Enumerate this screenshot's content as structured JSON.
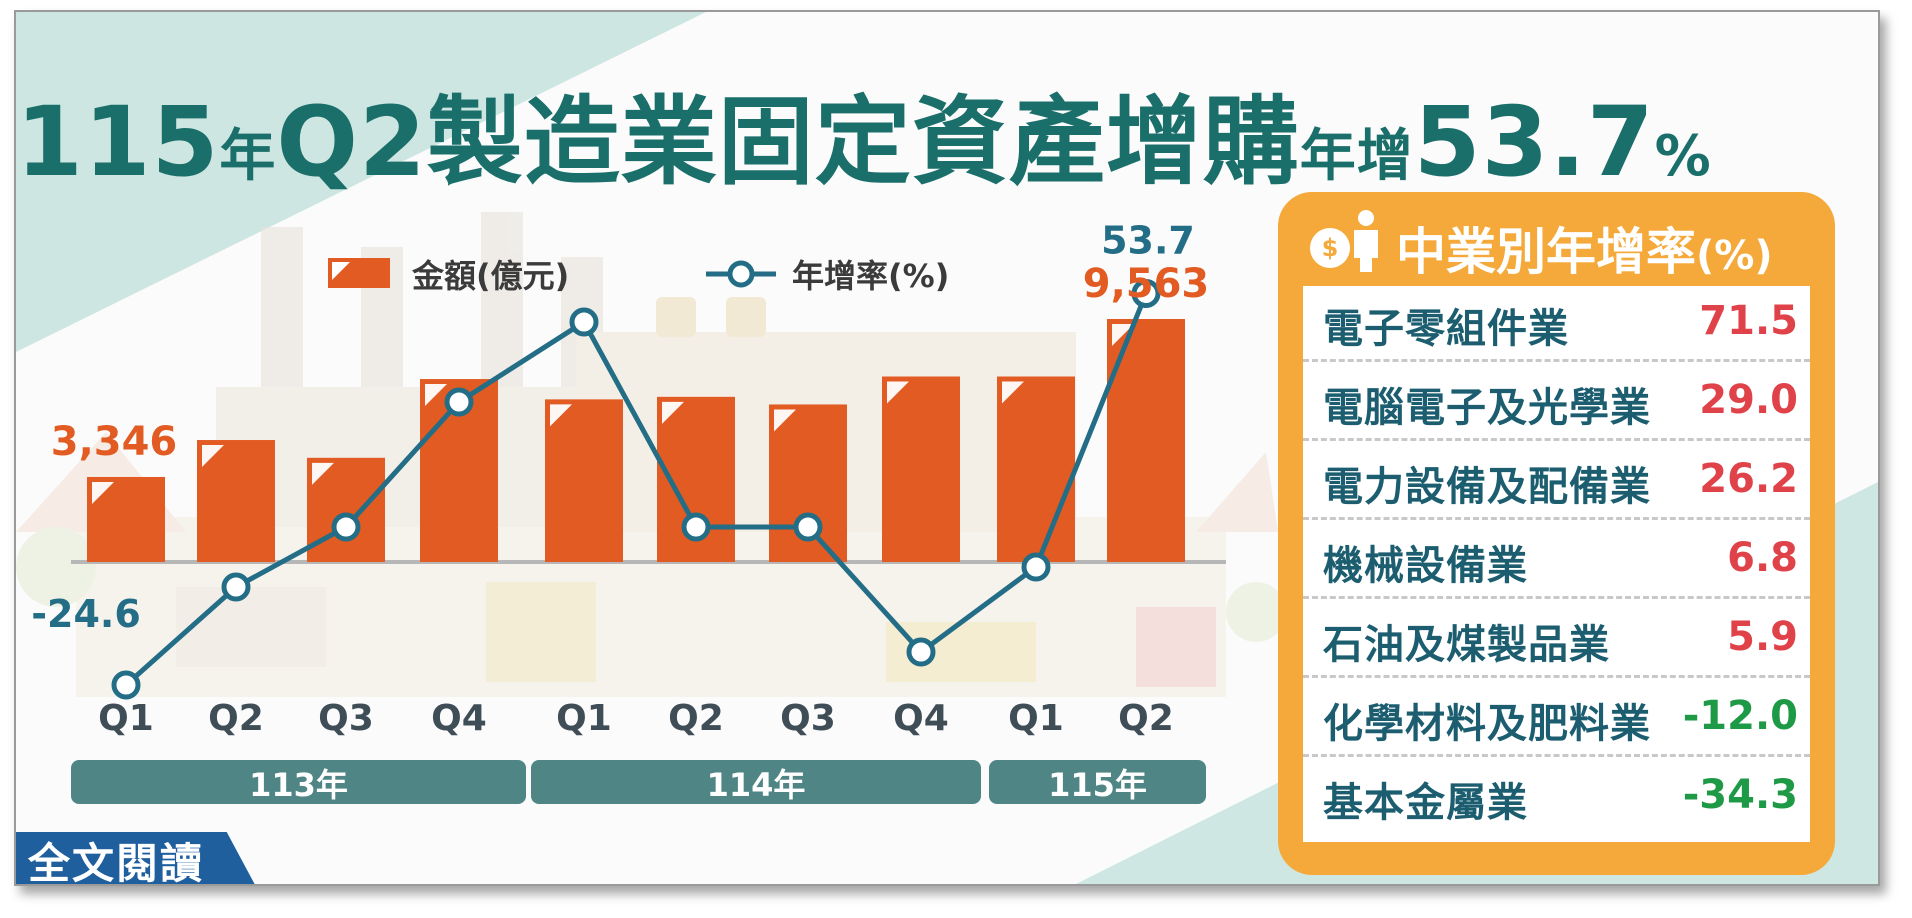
{
  "title": {
    "part1": "115",
    "part2": "年",
    "part3": "Q2製造業固定資產增購",
    "part4": "年增",
    "part5": "53.7",
    "part6": "%"
  },
  "read_button": "全文閱讀",
  "colors": {
    "bar": "#e25b22",
    "line": "#236e86",
    "title": "#1b6f6b",
    "panel": "#f4a93a",
    "year_band": "#4f8585",
    "positive": "#e0424a",
    "negative": "#1e9a47"
  },
  "chart_data": {
    "type": "bar+line",
    "legend": [
      {
        "name": "金額(億元)",
        "kind": "bar"
      },
      {
        "name": "年增率(%)",
        "kind": "line"
      }
    ],
    "legend_placement": "top",
    "categories": [
      "Q1",
      "Q2",
      "Q3",
      "Q4",
      "Q1",
      "Q2",
      "Q3",
      "Q4",
      "Q1",
      "Q2"
    ],
    "groups": [
      {
        "label": "113年",
        "span": [
          0,
          3
        ]
      },
      {
        "label": "114年",
        "span": [
          4,
          7
        ]
      },
      {
        "label": "115年",
        "span": [
          8,
          9
        ]
      }
    ],
    "series": [
      {
        "name": "金額(億元)",
        "type": "bar",
        "values": [
          3346,
          4800,
          4100,
          7200,
          6400,
          6500,
          6200,
          7300,
          7300,
          9563
        ]
      },
      {
        "name": "年增率(%)",
        "type": "line",
        "values": [
          -24.6,
          -5.0,
          7.0,
          32.0,
          48.0,
          7.0,
          7.0,
          -18.0,
          -1.0,
          53.7
        ]
      }
    ],
    "data_labels": [
      {
        "series": "金額(億元)",
        "index": 0,
        "text": "3,346"
      },
      {
        "series": "金額(億元)",
        "index": 9,
        "text": "9,563"
      },
      {
        "series": "年增率(%)",
        "index": 0,
        "text": "-24.6"
      },
      {
        "series": "年增率(%)",
        "index": 9,
        "text": "53.7"
      }
    ],
    "grid": false
  },
  "panel": {
    "icon": "person-coin-icon",
    "title": "中業別年增率",
    "unit": "(%)",
    "rows": [
      {
        "name": "電子零組件業",
        "value": "71.5",
        "sign": "pos"
      },
      {
        "name": "電腦電子及光學業",
        "value": "29.0",
        "sign": "pos"
      },
      {
        "name": "電力設備及配備業",
        "value": "26.2",
        "sign": "pos"
      },
      {
        "name": "機械設備業",
        "value": "6.8",
        "sign": "pos"
      },
      {
        "name": "石油及煤製品業",
        "value": "5.9",
        "sign": "pos"
      },
      {
        "name": "化學材料及肥料業",
        "value": "-12.0",
        "sign": "neg"
      },
      {
        "name": "基本金屬業",
        "value": "-34.3",
        "sign": "neg"
      }
    ]
  }
}
